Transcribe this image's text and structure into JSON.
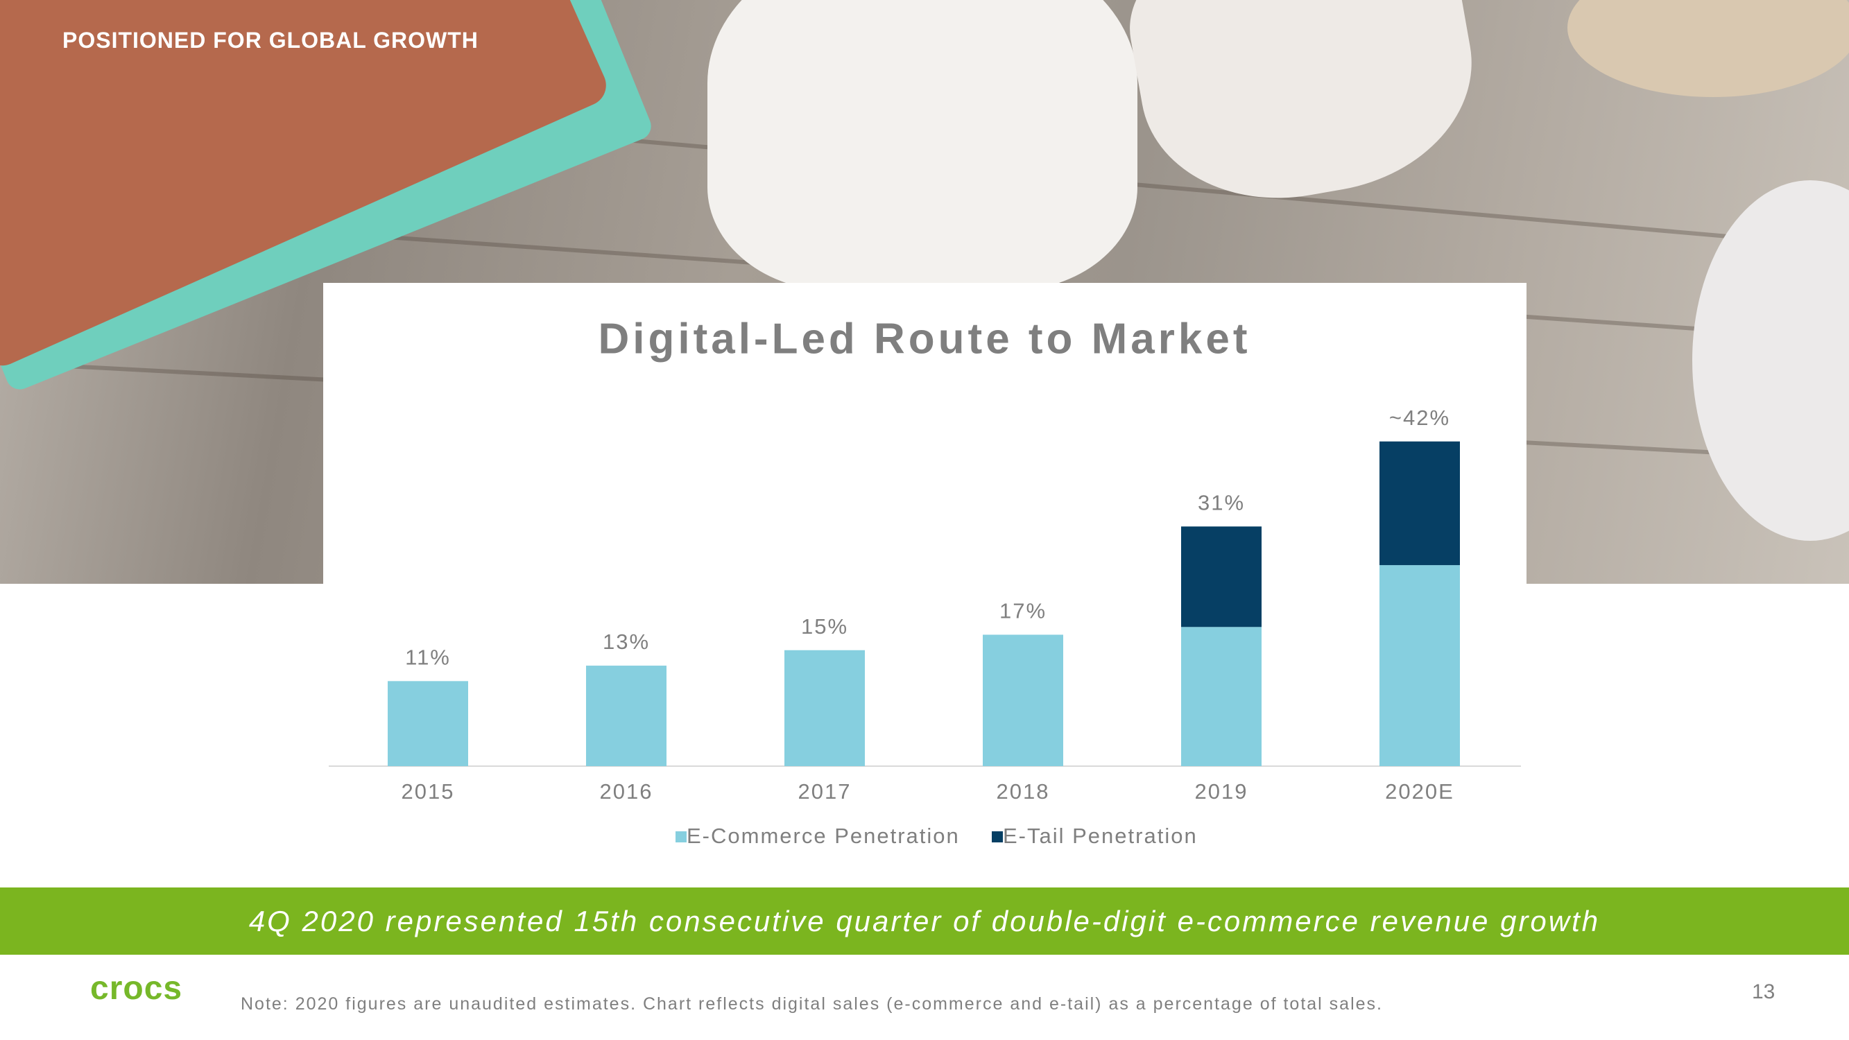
{
  "header": {
    "title": "POSITIONED FOR GLOBAL GROWTH"
  },
  "chart_data": {
    "type": "bar",
    "stacked": true,
    "title": "Digital-Led Route to Market",
    "categories": [
      "2015",
      "2016",
      "2017",
      "2018",
      "2019",
      "2020E"
    ],
    "series": [
      {
        "name": "E-Commerce Penetration",
        "color": "#86cfdf",
        "values": [
          11,
          13,
          15,
          17,
          18,
          26
        ]
      },
      {
        "name": "E-Tail Penetration",
        "color": "#063f64",
        "values": [
          null,
          null,
          null,
          null,
          13,
          16
        ]
      }
    ],
    "totals": [
      11,
      13,
      15,
      17,
      31,
      42
    ],
    "total_labels": [
      "11%",
      "13%",
      "15%",
      "17%",
      "31%",
      "~42%"
    ]
  },
  "banner": "4Q 2020 represented 15th consecutive quarter of double-digit e-commerce revenue growth",
  "logo": "crocs",
  "note": "Note: 2020 figures are unaudited estimates.  Chart reflects digital sales (e-commerce and e-tail) as a percentage of total sales.",
  "page_number": 13
}
